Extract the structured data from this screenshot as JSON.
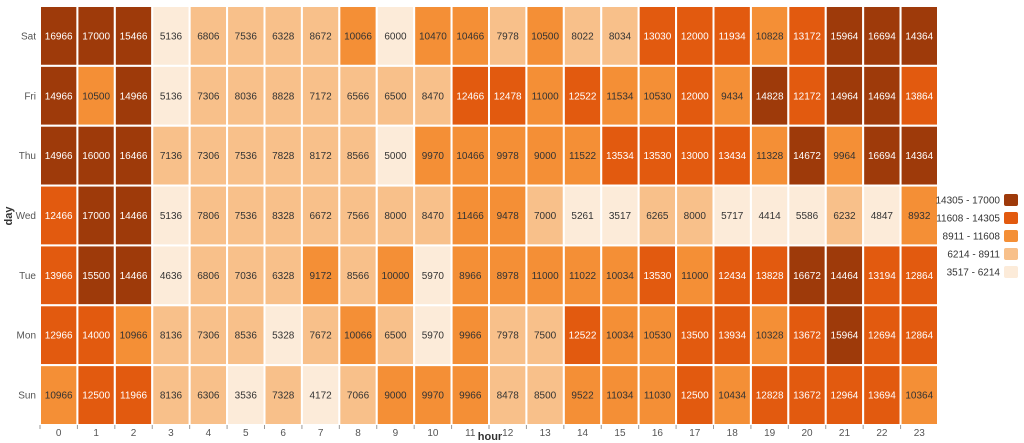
{
  "chart_data": {
    "type": "heatmap",
    "xlabel": "hour",
    "ylabel": "day",
    "x_categories": [
      "0",
      "1",
      "2",
      "3",
      "4",
      "5",
      "6",
      "7",
      "8",
      "9",
      "10",
      "11",
      "12",
      "13",
      "14",
      "15",
      "16",
      "17",
      "18",
      "19",
      "20",
      "21",
      "22",
      "23"
    ],
    "y_categories": [
      "Sat",
      "Fri",
      "Thu",
      "Wed",
      "Tue",
      "Mon",
      "Sun"
    ],
    "values": [
      [
        16966,
        17000,
        15466,
        5136,
        6806,
        7536,
        6328,
        8672,
        10066,
        6000,
        10470,
        10466,
        7978,
        10500,
        8022,
        8034,
        13030,
        12000,
        11934,
        10828,
        13172,
        15964,
        16694,
        14364
      ],
      [
        14966,
        10500,
        14966,
        5136,
        7306,
        8036,
        8828,
        7172,
        6566,
        6500,
        8470,
        12466,
        12478,
        11000,
        12522,
        11534,
        10530,
        12000,
        9434,
        14828,
        12172,
        14964,
        14694,
        13864
      ],
      [
        14966,
        16000,
        16466,
        7136,
        7306,
        7536,
        7828,
        8172,
        8566,
        5000,
        9970,
        10466,
        9978,
        9000,
        11522,
        13534,
        13530,
        13000,
        13434,
        11328,
        14672,
        9964,
        16694,
        14364
      ],
      [
        12466,
        17000,
        14466,
        5136,
        7806,
        7536,
        8328,
        6672,
        7566,
        8000,
        8470,
        11466,
        9478,
        7000,
        5261,
        3517,
        6265,
        8000,
        5717,
        4414,
        5586,
        6232,
        4847,
        8932
      ],
      [
        13966,
        15500,
        14466,
        4636,
        6806,
        7036,
        6328,
        9172,
        8566,
        10000,
        5970,
        8966,
        8978,
        11000,
        11022,
        10034,
        13530,
        11000,
        12434,
        13828,
        16672,
        14464,
        13194,
        12864
      ],
      [
        12966,
        14000,
        10966,
        8136,
        7306,
        8536,
        5328,
        7672,
        10066,
        6500,
        5970,
        9966,
        7978,
        7500,
        12522,
        10034,
        10530,
        13500,
        13934,
        10328,
        13672,
        15964,
        12694,
        12864
      ],
      [
        10966,
        12500,
        11966,
        8136,
        6306,
        3536,
        7328,
        4172,
        7066,
        9000,
        9970,
        9966,
        8478,
        8500,
        9522,
        11034,
        11030,
        12500,
        10434,
        12828,
        13672,
        12964,
        13694,
        10364
      ]
    ],
    "legend": [
      {
        "label": "14305 - 17000",
        "min": 14305,
        "max": 17000,
        "color": "#9e3a0a"
      },
      {
        "label": "11608 - 14305",
        "min": 11608,
        "max": 14305,
        "color": "#e25a0f"
      },
      {
        "label": "8911 - 11608",
        "min": 8911,
        "max": 11608,
        "color": "#f48f36"
      },
      {
        "label": "6214 - 8911",
        "min": 6214,
        "max": 8911,
        "color": "#f8c08a"
      },
      {
        "label": "3517 - 6214",
        "min": 3517,
        "max": 6214,
        "color": "#fcebd9"
      }
    ],
    "legend_position": "right"
  }
}
